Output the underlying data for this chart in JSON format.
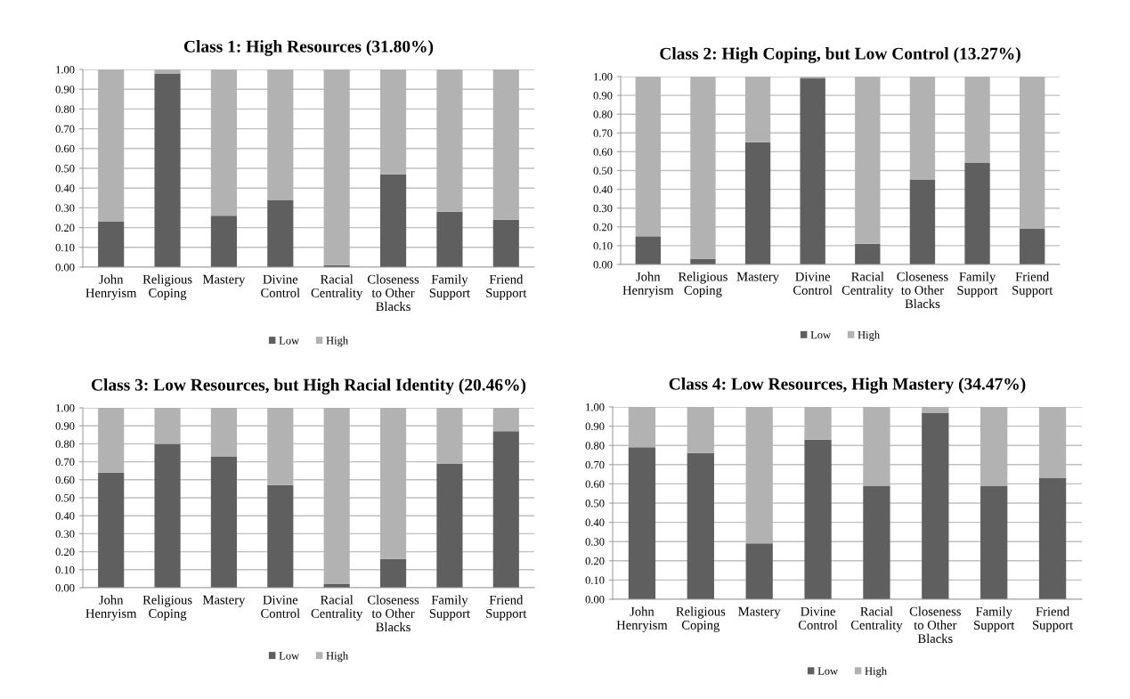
{
  "chart_data": [
    {
      "type": "bar",
      "title": "Class 1: High Resources (31.80%)",
      "stacked": true,
      "grid": "y",
      "legend": "bottom",
      "categories": [
        "John\nHenryism",
        "Religious\nCoping",
        "Mastery",
        "Divine\nControl",
        "Racial\nCentrality",
        "Closeness\nto Other\nBlacks",
        "Family\nSupport",
        "Friend\nSupport"
      ],
      "series": [
        {
          "name": "Low",
          "color": "#5f5f5f",
          "values": [
            0.23,
            0.98,
            0.26,
            0.34,
            0.01,
            0.47,
            0.28,
            0.24
          ]
        },
        {
          "name": "High",
          "color": "#b2b2b2",
          "values": [
            0.77,
            0.02,
            0.74,
            0.66,
            0.99,
            0.53,
            0.72,
            0.76
          ]
        }
      ],
      "ylim": [
        0,
        1
      ],
      "yticks": [
        {
          "value": 0,
          "label": "0.00"
        },
        {
          "value": 0.1,
          "label": "0.10"
        },
        {
          "value": 0.2,
          "label": "0.20"
        },
        {
          "value": 0.3,
          "label": "0.30"
        },
        {
          "value": 0.4,
          "label": "0.40"
        },
        {
          "value": 0.5,
          "label": "0.50"
        },
        {
          "value": 0.6,
          "label": "0.60"
        },
        {
          "value": 0.7,
          "label": "0.70"
        },
        {
          "value": 0.8,
          "label": "0.80"
        },
        {
          "value": 0.9,
          "label": "0.90"
        },
        {
          "value": 1,
          "label": "1.00"
        }
      ]
    },
    {
      "type": "bar",
      "title": "Class 2: High Coping, but Low Control (13.27%)",
      "stacked": true,
      "grid": "y",
      "legend": "bottom",
      "categories": [
        "John\nHenryism",
        "Religious\nCoping",
        "Mastery",
        "Divine\nControl",
        "Racial\nCentrality",
        "Closeness\nto Other\nBlacks",
        "Family\nSupport",
        "Friend\nSupport"
      ],
      "series": [
        {
          "name": "Low",
          "color": "#5f5f5f",
          "values": [
            0.15,
            0.03,
            0.65,
            0.99,
            0.11,
            0.45,
            0.54,
            0.19
          ]
        },
        {
          "name": "High",
          "color": "#b2b2b2",
          "values": [
            0.85,
            0.97,
            0.35,
            0.01,
            0.89,
            0.55,
            0.46,
            0.81
          ]
        }
      ],
      "ylim": [
        0,
        1
      ],
      "yticks": [
        {
          "value": 0,
          "label": "0.00"
        },
        {
          "value": 0.1,
          "label": "0.10"
        },
        {
          "value": 0.2,
          "label": "0.20"
        },
        {
          "value": 0.3,
          "label": "0.30"
        },
        {
          "value": 0.4,
          "label": "0.40"
        },
        {
          "value": 0.5,
          "label": "0.50"
        },
        {
          "value": 0.6,
          "label": "0.60"
        },
        {
          "value": 0.7,
          "label": "0.70"
        },
        {
          "value": 0.8,
          "label": "0.80"
        },
        {
          "value": 0.9,
          "label": "0.90"
        },
        {
          "value": 1,
          "label": "1.00"
        }
      ]
    },
    {
      "type": "bar",
      "title": "Class 3: Low Resources, but High Racial Identity (20.46%)",
      "stacked": true,
      "grid": "y",
      "legend": "bottom",
      "categories": [
        "John\nHenryism",
        "Religious\nCoping",
        "Mastery",
        "Divine\nControl",
        "Racial\nCentrality",
        "Closeness\nto Other\nBlacks",
        "Family\nSupport",
        "Friend\nSupport"
      ],
      "series": [
        {
          "name": "Low",
          "color": "#5f5f5f",
          "values": [
            0.64,
            0.8,
            0.73,
            0.57,
            0.02,
            0.16,
            0.69,
            0.87
          ]
        },
        {
          "name": "High",
          "color": "#b2b2b2",
          "values": [
            0.36,
            0.2,
            0.27,
            0.43,
            0.98,
            0.84,
            0.31,
            0.13
          ]
        }
      ],
      "ylim": [
        0,
        1
      ],
      "yticks": [
        {
          "value": 0,
          "label": "0.00"
        },
        {
          "value": 0.1,
          "label": "0.10"
        },
        {
          "value": 0.2,
          "label": "0.20"
        },
        {
          "value": 0.3,
          "label": "0.30"
        },
        {
          "value": 0.4,
          "label": "0.40"
        },
        {
          "value": 0.5,
          "label": "0.50"
        },
        {
          "value": 0.6,
          "label": "0.60"
        },
        {
          "value": 0.7,
          "label": "0.70"
        },
        {
          "value": 0.8,
          "label": "0.80"
        },
        {
          "value": 0.9,
          "label": "0.90"
        },
        {
          "value": 1,
          "label": "1.00"
        }
      ]
    },
    {
      "type": "bar",
      "title": "Class 4: Low Resources, High Mastery (34.47%)",
      "stacked": true,
      "grid": "y",
      "legend": "bottom",
      "categories": [
        "John\nHenryism",
        "Religious\nCoping",
        "Mastery",
        "Divine\nControl",
        "Racial\nCentrality",
        "Closeness\nto Other\nBlacks",
        "Family\nSupport",
        "Friend\nSupport"
      ],
      "series": [
        {
          "name": "Low",
          "color": "#5f5f5f",
          "values": [
            0.79,
            0.76,
            0.29,
            0.83,
            0.59,
            0.97,
            0.59,
            0.63
          ]
        },
        {
          "name": "High",
          "color": "#b2b2b2",
          "values": [
            0.21,
            0.24,
            0.71,
            0.17,
            0.41,
            0.03,
            0.41,
            0.37
          ]
        }
      ],
      "ylim": [
        0,
        1
      ],
      "yticks": [
        {
          "value": 0,
          "label": "0.00"
        },
        {
          "value": 0.1,
          "label": "0.10"
        },
        {
          "value": 0.2,
          "label": "0.20"
        },
        {
          "value": 0.3,
          "label": "0.30"
        },
        {
          "value": 0.4,
          "label": "0.40"
        },
        {
          "value": 0.5,
          "label": "0.50"
        },
        {
          "value": 0.6,
          "label": "0.60"
        },
        {
          "value": 0.7,
          "label": "0.70"
        },
        {
          "value": 0.8,
          "label": "0.80"
        },
        {
          "value": 0.9,
          "label": "0.90"
        },
        {
          "value": 1,
          "label": "1.00"
        }
      ]
    }
  ]
}
